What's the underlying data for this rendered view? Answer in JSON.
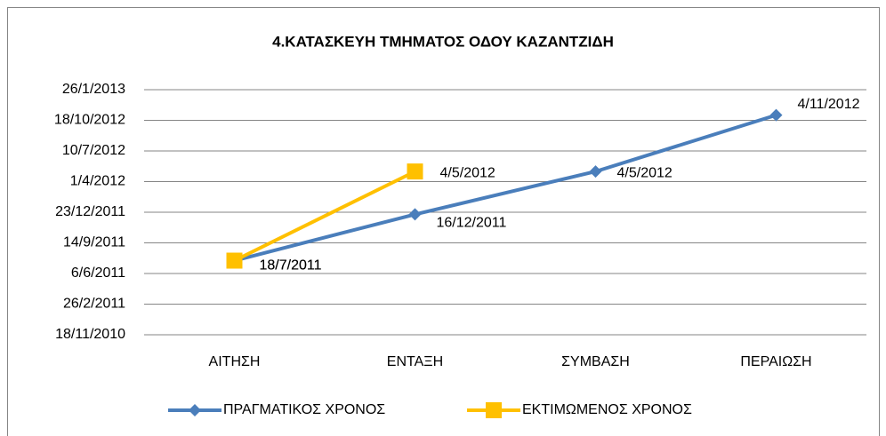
{
  "chart_data": {
    "type": "line",
    "title": "4.ΚΑΤΑΣΚΕΥΗ ΤΜΗΜΑΤΟΣ ΟΔΟΥ ΚΑΖΑΝΤΖΙΔΗ",
    "categories": [
      "ΑΙΤΗΣΗ",
      "ΕΝΤΑΞΗ",
      "ΣΥΜΒΑΣΗ",
      "ΠΕΡΑΙΩΣΗ"
    ],
    "series": [
      {
        "name": "ΠΡΑΓΜΑΤΙΚΟΣ ΧΡΟΝΟΣ",
        "color": "#4a7ebb",
        "marker": "diamond",
        "values": [
          "18/7/2011",
          "16/12/2011",
          "4/5/2012",
          "4/11/2012"
        ]
      },
      {
        "name": "ΕΚΤΙΜΩΜΕΝΟΣ ΧΡΟΝΟΣ",
        "color": "#ffc000",
        "marker": "square",
        "values": [
          "18/7/2011",
          "4/5/2012",
          null,
          null
        ]
      }
    ],
    "ylim": [
      "18/11/2010",
      "26/1/2013"
    ],
    "yticks": [
      "18/11/2010",
      "26/2/2011",
      "6/6/2011",
      "14/9/2011",
      "23/12/2011",
      "1/4/2012",
      "10/7/2012",
      "18/10/2012",
      "26/1/2013"
    ],
    "grid": true,
    "legend": "bottom"
  }
}
